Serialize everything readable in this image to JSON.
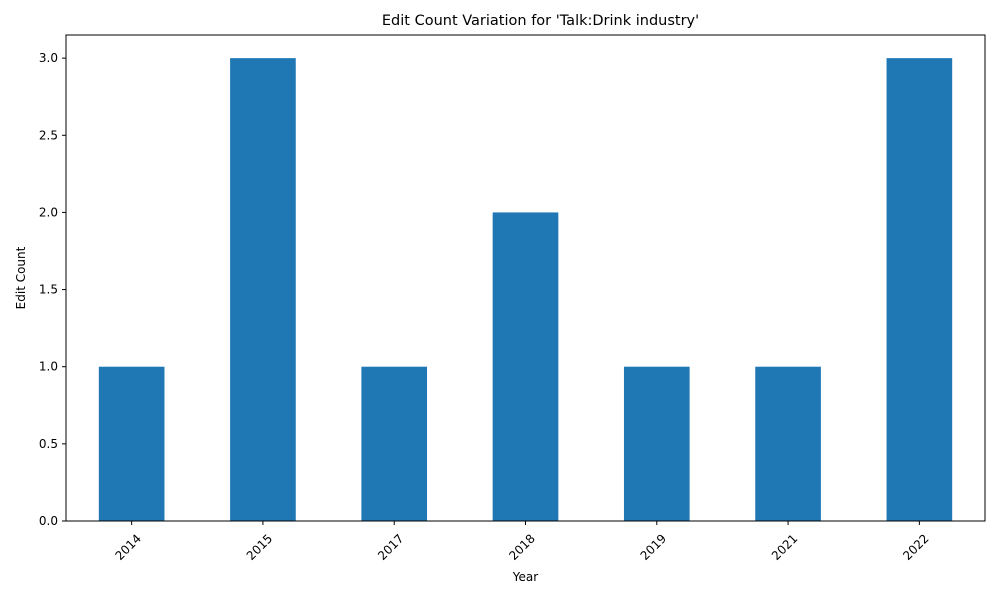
{
  "chart_data": {
    "type": "bar",
    "title": "Edit Count Variation for 'Talk:Drink industry'",
    "xlabel": "Year",
    "ylabel": "Edit Count",
    "categories": [
      "2014",
      "2015",
      "2017",
      "2018",
      "2019",
      "2021",
      "2022"
    ],
    "values": [
      1,
      3,
      1,
      2,
      1,
      1,
      3
    ],
    "ylim": [
      0,
      3.15
    ],
    "yticks": [
      "0.0",
      "0.5",
      "1.0",
      "1.5",
      "2.0",
      "2.5",
      "3.0"
    ],
    "grid": false,
    "legend": "none",
    "bar_color": "#1f77b4",
    "x_tick_rotation": 45
  }
}
